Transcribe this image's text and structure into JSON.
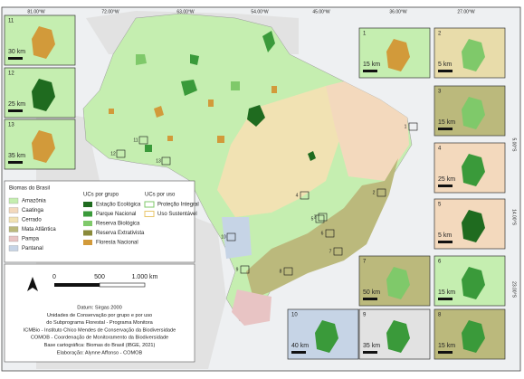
{
  "coordinates": {
    "top": [
      "81.00°W",
      "72.00°W",
      "63.00°W",
      "54.00°W",
      "45.00°W",
      "36.00°W",
      "27.00°W"
    ],
    "right": [
      "5.00°S",
      "14.00°S",
      "23.00°S"
    ]
  },
  "insets": [
    {
      "number": "11",
      "scale": "30 km"
    },
    {
      "number": "12",
      "scale": "25 km"
    },
    {
      "number": "13",
      "scale": "35 km"
    },
    {
      "number": "1",
      "scale": "15 km"
    },
    {
      "number": "2",
      "scale": "5 km"
    },
    {
      "number": "3",
      "scale": "15 km"
    },
    {
      "number": "4",
      "scale": "25 km"
    },
    {
      "number": "5",
      "scale": "5 km"
    },
    {
      "number": "6",
      "scale": "15 km"
    },
    {
      "number": "7",
      "scale": "50 km"
    },
    {
      "number": "8",
      "scale": "15 km"
    },
    {
      "number": "9",
      "scale": "35 km"
    },
    {
      "number": "10",
      "scale": "40 km"
    }
  ],
  "map_labels": [
    "1",
    "2",
    "3",
    "4",
    "5",
    "6",
    "7",
    "8",
    "9",
    "10",
    "11",
    "12",
    "13"
  ],
  "legend": {
    "biomes_title": "Biomas do Brasil",
    "biomes": [
      "Amazônia",
      "Caatinga",
      "Cerrado",
      "Mata Atlântica",
      "Pampa",
      "Pantanal"
    ],
    "groups_title": "UCs por grupo",
    "groups": [
      "Estação Ecológica",
      "Parque Nacional",
      "Reserva Biológica",
      "Reserva Extrativista",
      "Floresta Nacional"
    ],
    "uses_title": "UCs por uso",
    "uses": [
      "Proteção Integral",
      "Uso Sustentável"
    ]
  },
  "scale_bar": {
    "labels": [
      "0",
      "500",
      "1.000 km"
    ]
  },
  "credits": [
    "Datum: Sirgas 2000",
    "Unidades de Conservação por grupo e por uso",
    "do Subprograma Florestal - Programa Monitora",
    "ICMBio - Instituto Chico Mendes de Conservação da Biodiversidade",
    "COMOB - Coordenação de Monitoramento da Biodiversidade",
    "Base cartográfica: Biomas do Brasil (IBGE, 2021)",
    "Elaboração: Alynne Affonso - COMOB"
  ]
}
